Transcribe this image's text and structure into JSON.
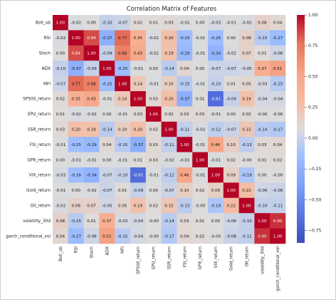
{
  "chart_data": {
    "type": "heatmap",
    "title": "Correlation Matrix of Features",
    "labels": [
      "Boll_ub",
      "RSI",
      "Stoch",
      "ADX",
      "MFI",
      "SP500_return",
      "EPU_return",
      "SSR_return",
      "FSI_return",
      "GPR_return",
      "VIX_return",
      "Gold_return",
      "Oil_return",
      "volatility_30d",
      "garch_conditional_vol"
    ],
    "matrix": [
      [
        1.0,
        -0.02,
        0.0,
        -0.1,
        -0.07,
        0.02,
        0.01,
        0.03,
        -0.01,
        0.0,
        -0.03,
        -0.01,
        -0.02,
        0.08,
        0.04
      ],
      [
        -0.02,
        1.0,
        0.84,
        -0.37,
        0.77,
        0.35,
        -0.02,
        0.2,
        -0.25,
        -0.01,
        -0.26,
        0.0,
        0.08,
        -0.15,
        -0.27
      ],
      [
        0.0,
        0.84,
        1.0,
        -0.09,
        0.68,
        0.43,
        -0.02,
        0.19,
        -0.29,
        -0.01,
        -0.34,
        -0.02,
        0.07,
        0.01,
        -0.06
      ],
      [
        -0.1,
        -0.37,
        -0.09,
        1.0,
        -0.25,
        -0.01,
        0.0,
        -0.14,
        0.04,
        0.0,
        -0.07,
        -0.07,
        -0.05,
        0.37,
        0.51
      ],
      [
        -0.07,
        0.77,
        0.68,
        -0.25,
        1.0,
        0.14,
        -0.01,
        0.1,
        -0.15,
        -0.01,
        -0.1,
        0.01,
        0.05,
        -0.03,
        -0.15
      ],
      [
        0.02,
        0.35,
        0.43,
        -0.01,
        0.14,
        1.0,
        0.03,
        0.2,
        -0.37,
        0.01,
        -0.81,
        -0.09,
        0.19,
        -0.04,
        -0.04
      ],
      [
        0.01,
        -0.02,
        -0.02,
        0.0,
        -0.01,
        0.03,
        1.0,
        0.02,
        0.03,
        0.03,
        -0.01,
        0.0,
        0.02,
        -0.0,
        -0.0
      ],
      [
        0.03,
        0.2,
        0.19,
        -0.14,
        0.1,
        0.2,
        0.02,
        1.0,
        -0.11,
        -0.02,
        -0.12,
        -0.07,
        0.15,
        -0.14,
        -0.17
      ],
      [
        -0.01,
        -0.25,
        -0.29,
        0.04,
        -0.15,
        -0.37,
        0.03,
        -0.11,
        1.0,
        -0.01,
        0.46,
        0.1,
        -0.13,
        0.03,
        0.04
      ],
      [
        0.0,
        -0.01,
        -0.01,
        0.0,
        -0.01,
        0.01,
        0.03,
        -0.02,
        -0.01,
        1.0,
        -0.01,
        0.02,
        -0.0,
        0.01,
        0.02
      ],
      [
        -0.03,
        -0.26,
        -0.34,
        -0.07,
        -0.1,
        -0.81,
        -0.01,
        -0.12,
        0.46,
        -0.01,
        1.0,
        0.09,
        -0.19,
        0.0,
        -0.0
      ],
      [
        -0.01,
        0.0,
        -0.02,
        -0.07,
        0.01,
        -0.09,
        0.0,
        -0.07,
        0.1,
        0.02,
        0.09,
        1.0,
        0.22,
        -0.06,
        -0.08
      ],
      [
        -0.02,
        0.08,
        0.07,
        -0.05,
        0.05,
        0.19,
        0.02,
        0.15,
        -0.13,
        -0.0,
        -0.19,
        0.22,
        1.0,
        -0.1,
        -0.11
      ],
      [
        0.08,
        -0.15,
        0.01,
        0.37,
        -0.03,
        -0.04,
        -0.0,
        -0.14,
        0.03,
        0.01,
        0.0,
        -0.06,
        -0.1,
        1.0,
        0.9
      ],
      [
        0.04,
        -0.27,
        -0.06,
        0.51,
        -0.15,
        -0.04,
        -0.0,
        -0.17,
        0.04,
        0.02,
        -0.0,
        -0.08,
        -0.11,
        0.9,
        1.0
      ]
    ],
    "colorbar": {
      "colormap": "coolwarm",
      "min": -0.85,
      "max": 1.0,
      "ticks": [
        1.0,
        0.75,
        0.5,
        0.25,
        0.0,
        -0.25,
        -0.5,
        -0.75
      ]
    },
    "grid": false,
    "legend": "colorbar-right"
  }
}
